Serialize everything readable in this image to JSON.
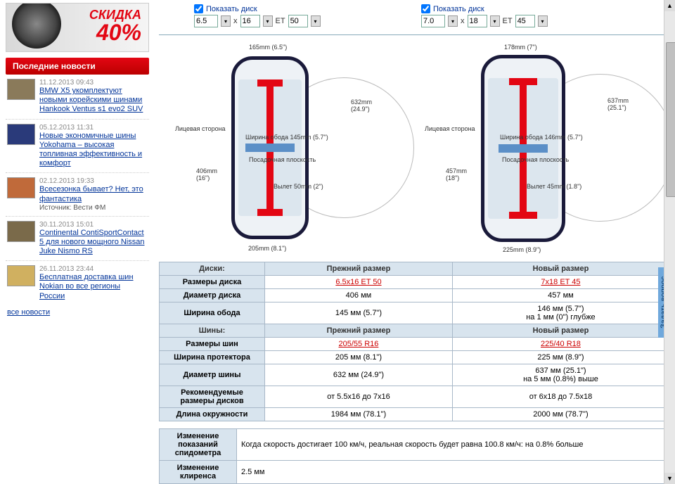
{
  "promo": {
    "label": "СКИДКА",
    "pct": "40%"
  },
  "newsHeader": "Последние новости",
  "news": [
    {
      "date": "11.12.2013 09:43",
      "title": "BMW X5 укомплектуют новыми корейскими шинами Hankook Ventus s1 evo2 SUV",
      "thumb": "#8a7a5a"
    },
    {
      "date": "05.12.2013 11:31",
      "title": "Новые экономичные шины Yokohama – высокая топливная эффективность и комфорт",
      "thumb": "#2a3a7a"
    },
    {
      "date": "02.12.2013 19:33",
      "title": "Всесезонка бывает? Нет, это фантастика",
      "src": "Источник: Вести ФМ",
      "thumb": "#c06a3a"
    },
    {
      "date": "30.11.2013 15:01",
      "title": "Continental ContiSportContact 5 для нового мощного Nissan Juke Nismo RS",
      "thumb": "#7a6a4a"
    },
    {
      "date": "26.11.2013 23:44",
      "title": "Бесплатная доставка шин Nokian во все регионы России",
      "thumb": "#d0b060"
    }
  ],
  "allNews": "все новости",
  "controls": {
    "showDisk": "Показать диск",
    "left": {
      "w": "6.5",
      "d": "16",
      "et": "50"
    },
    "right": {
      "w": "7.0",
      "d": "18",
      "et": "45"
    },
    "x": "x",
    "etLabel": "ET"
  },
  "diag": {
    "left": {
      "topW": "165mm (6.5\")",
      "face": "Лицевая сторона",
      "rimW": "Ширина обода 145mm (5.7\")",
      "seat": "Посадочная плоскость",
      "offset": "Вылет 50mm (2\")",
      "wheelD": "406mm\n(16\")",
      "tyreD": "632mm\n(24.9\")",
      "botW": "205mm (8.1\")"
    },
    "right": {
      "topW": "178mm (7\")",
      "face": "Лицевая сторона",
      "rimW": "Ширина обода 146mm (5.7\")",
      "seat": "Посадочная плоскость",
      "offset": "Вылет 45mm (1.8\")",
      "wheelD": "457mm\n(18\")",
      "tyreD": "637mm\n(25.1\")",
      "botW": "225mm (8.9\")"
    }
  },
  "table": {
    "sectDisk": "Диски:",
    "sectTyre": "Шины:",
    "hPrev": "Прежний размер",
    "hNew": "Новый размер",
    "rows": {
      "diskSize": {
        "l": "Размеры диска",
        "a": "6.5x16 ET 50",
        "b": "7x18 ET 45",
        "link": true
      },
      "diskDiam": {
        "l": "Диаметр диска",
        "a": "406 мм",
        "b": "457 мм"
      },
      "rimWidth": {
        "l": "Ширина обода",
        "a": "145 мм (5.7\")",
        "b": "146 мм (5.7\")\nна 1 мм (0\") глубже"
      },
      "tyreSize": {
        "l": "Размеры шин",
        "a": "205/55 R16",
        "b": "225/40 R18",
        "link": true
      },
      "treadW": {
        "l": "Ширина протектора",
        "a": "205 мм (8.1\")",
        "b": "225 мм (8.9\")"
      },
      "tyreDiam": {
        "l": "Диаметр шины",
        "a": "632 мм (24.9\")",
        "b": "637 мм (25.1\")\nна 5 мм (0.8%) выше"
      },
      "recDisk": {
        "l": "Рекомендуемые размеры дисков",
        "a": "от 5.5x16 до 7x16",
        "b": "от 6x18 до 7.5x18"
      },
      "circ": {
        "l": "Длина окружности",
        "a": "1984 мм (78.1\")",
        "b": "2000 мм (78.7\")"
      }
    }
  },
  "info": {
    "speedo": {
      "l": "Изменение показаний спидометра",
      "v": "Когда скорость достигает 100 км/ч, реальная скорость будет равна 100.8 км/ч: на 0.8% больше"
    },
    "clear": {
      "l": "Изменение клиренса",
      "v": "2.5 мм"
    }
  },
  "feedback": "Задать вопрос"
}
